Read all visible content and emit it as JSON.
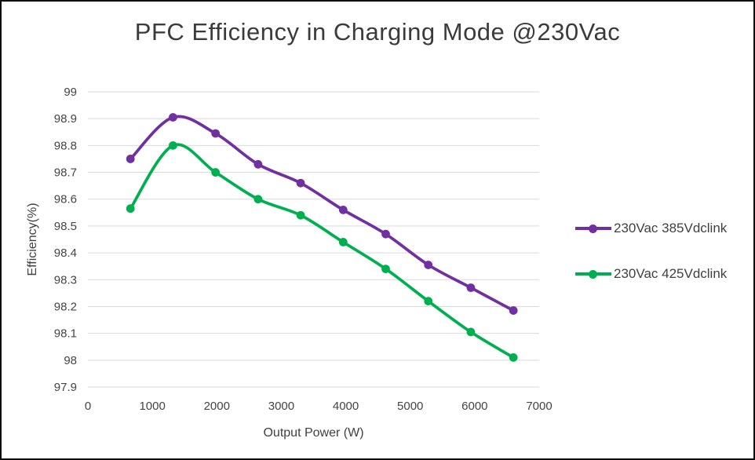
{
  "window": {
    "background": "#ffffff",
    "frame_color": "#0d0d0d"
  },
  "chart_data": {
    "type": "line",
    "title": "PFC Efficiency in Charging Mode @230Vac",
    "xlabel": "Output Power (W)",
    "ylabel": "Efficiency(%)",
    "x": [
      660,
      1320,
      1980,
      2640,
      3300,
      3960,
      4620,
      5280,
      5940,
      6600
    ],
    "series": [
      {
        "name": "230Vac 385Vdclink",
        "color": "#7030A0",
        "values": [
          98.75,
          98.905,
          98.845,
          98.73,
          98.66,
          98.56,
          98.47,
          98.355,
          98.27,
          98.185
        ]
      },
      {
        "name": "230Vac 425Vdclink",
        "color": "#00B050",
        "values": [
          98.565,
          98.8,
          98.7,
          98.6,
          98.54,
          98.44,
          98.34,
          98.22,
          98.105,
          98.01
        ]
      }
    ],
    "xlim": [
      0,
      7000
    ],
    "ylim": [
      97.9,
      99
    ],
    "x_ticks": [
      0,
      1000,
      2000,
      3000,
      4000,
      5000,
      6000,
      7000
    ],
    "y_ticks": [
      97.9,
      98,
      98.1,
      98.2,
      98.3,
      98.4,
      98.5,
      98.6,
      98.7,
      98.8,
      98.9,
      99
    ],
    "grid": true,
    "gridline_color": "#d9d9d9",
    "tick_text_color": "#444444",
    "title_color": "#3b3b3b",
    "legend_position": "right",
    "smooth_lines": true,
    "marker": "circle",
    "line_width": 3.75,
    "marker_radius": 5.4
  }
}
